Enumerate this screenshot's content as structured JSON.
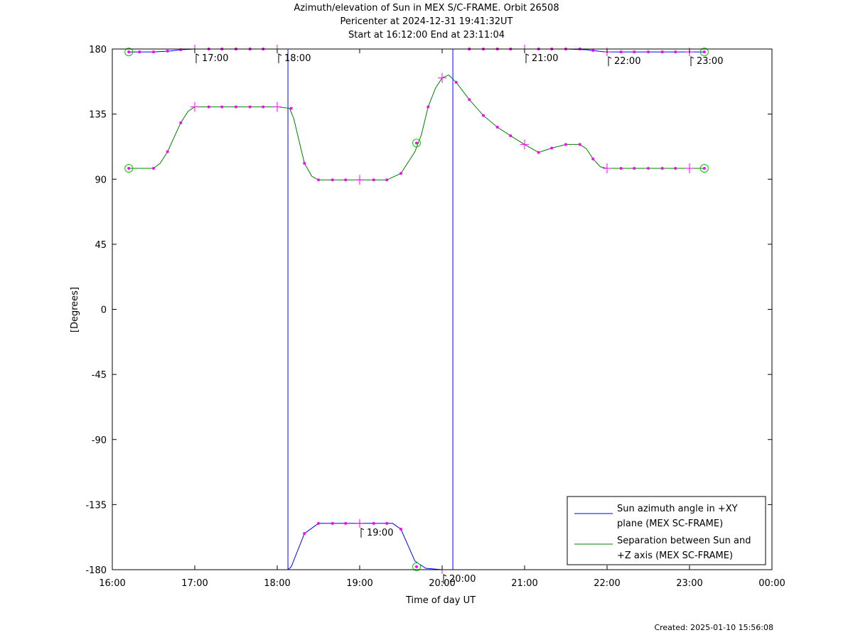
{
  "titles": {
    "line1": "Azimuth/elevation of Sun in MEX S/C-FRAME.  Orbit 26508",
    "line2": "Pericenter at 2024-12-31 19:41:32UT",
    "line3": "Start at 16:12:00 End at 23:11:04"
  },
  "footer": {
    "created": "Created: 2025-01-10 15:56:08"
  },
  "colors": {
    "azimuth": "#0000ff",
    "separation": "#008000",
    "marker": "#ff00ff",
    "frame": "#000000"
  },
  "chart_data": {
    "type": "line",
    "xlabel": "Time of day UT",
    "ylabel": "[Degrees]",
    "xlim": [
      16.0,
      24.0
    ],
    "ylim": [
      -180,
      180
    ],
    "xticks": [
      16,
      17,
      18,
      19,
      20,
      21,
      22,
      23,
      24
    ],
    "xtick_labels": [
      "16:00",
      "17:00",
      "18:00",
      "19:00",
      "20:00",
      "21:00",
      "22:00",
      "23:00",
      "00:00"
    ],
    "yticks": [
      180,
      135,
      90,
      45,
      0,
      -45,
      -90,
      -135,
      -180
    ],
    "ytick_labels": [
      "180",
      "135",
      "90",
      "45",
      "0",
      "-45",
      "-90",
      "-135",
      "-180"
    ],
    "legend_position": "bottom-right",
    "series": [
      {
        "name": "Sun azimuth angle in +XY plane (MEX SC-FRAME)",
        "legend_lines": [
          "Sun azimuth angle in +XY",
          "plane (MEX SC-FRAME)"
        ],
        "color_key": "azimuth",
        "segments": [
          [
            [
              16.2,
              178
            ],
            [
              16.5,
              178
            ],
            [
              16.7,
              178.6
            ],
            [
              16.83,
              179.5
            ],
            [
              17.0,
              180
            ],
            [
              18.0,
              180
            ],
            [
              18.13,
              180
            ]
          ],
          [
            [
              18.13,
              -180
            ],
            [
              18.17,
              -178
            ],
            [
              18.33,
              -155
            ],
            [
              18.5,
              -148
            ],
            [
              19.0,
              -148
            ],
            [
              19.4,
              -148
            ],
            [
              19.5,
              -152
            ],
            [
              19.67,
              -174
            ],
            [
              19.8,
              -179
            ],
            [
              20.0,
              -180
            ],
            [
              20.13,
              -180
            ]
          ],
          [
            [
              20.13,
              180
            ],
            [
              20.3,
              180
            ],
            [
              21.0,
              180
            ],
            [
              21.5,
              180
            ],
            [
              21.75,
              179.5
            ],
            [
              21.9,
              178.5
            ],
            [
              22.0,
              178
            ],
            [
              23.18,
              178
            ]
          ]
        ],
        "hour_labels": [
          {
            "x": 17.0,
            "y": 180,
            "label": "17:00"
          },
          {
            "x": 18.0,
            "y": 180,
            "label": "18:00"
          },
          {
            "x": 19.0,
            "y": -148,
            "label": "19:00"
          },
          {
            "x": 20.0,
            "y": -180,
            "label": "20:00"
          },
          {
            "x": 21.0,
            "y": 180,
            "label": "21:00"
          },
          {
            "x": 22.0,
            "y": 178,
            "label": "22:00"
          },
          {
            "x": 23.0,
            "y": 178,
            "label": "23:00"
          }
        ],
        "dots": [
          [
            16.33,
            178
          ],
          [
            16.5,
            178
          ],
          [
            16.67,
            178.6
          ],
          [
            16.83,
            179.5
          ],
          [
            17.17,
            180
          ],
          [
            17.33,
            180
          ],
          [
            17.5,
            180
          ],
          [
            17.67,
            180
          ],
          [
            17.83,
            180
          ],
          [
            18.33,
            -155
          ],
          [
            18.5,
            -148
          ],
          [
            18.67,
            -148
          ],
          [
            18.83,
            -148
          ],
          [
            19.17,
            -148
          ],
          [
            19.33,
            -148
          ],
          [
            19.5,
            -152
          ],
          [
            20.33,
            180
          ],
          [
            20.5,
            180
          ],
          [
            20.67,
            180
          ],
          [
            20.83,
            180
          ],
          [
            21.17,
            180
          ],
          [
            21.33,
            180
          ],
          [
            21.5,
            180
          ],
          [
            21.67,
            180
          ],
          [
            21.83,
            179
          ],
          [
            22.17,
            178
          ],
          [
            22.33,
            178
          ],
          [
            22.5,
            178
          ],
          [
            22.67,
            178
          ],
          [
            22.83,
            178
          ]
        ],
        "circles": [
          [
            16.2,
            178
          ],
          [
            19.69,
            -178
          ],
          [
            23.18,
            178
          ]
        ]
      },
      {
        "name": "Separation between Sun and +Z axis (MEX SC-FRAME)",
        "legend_lines": [
          "Separation between Sun and",
          "+Z axis (MEX SC-FRAME)"
        ],
        "color_key": "separation",
        "points": [
          [
            16.2,
            97.5
          ],
          [
            16.5,
            97.5
          ],
          [
            16.58,
            101
          ],
          [
            16.67,
            109
          ],
          [
            16.83,
            129
          ],
          [
            16.92,
            137
          ],
          [
            17.0,
            140
          ],
          [
            17.5,
            140
          ],
          [
            18.0,
            140
          ],
          [
            18.15,
            139
          ],
          [
            18.2,
            132
          ],
          [
            18.33,
            101
          ],
          [
            18.42,
            92
          ],
          [
            18.5,
            89.5
          ],
          [
            19.0,
            89.5
          ],
          [
            19.33,
            89.5
          ],
          [
            19.5,
            94
          ],
          [
            19.67,
            109
          ],
          [
            19.75,
            121
          ],
          [
            19.83,
            140
          ],
          [
            19.92,
            153
          ],
          [
            20.0,
            160
          ],
          [
            20.08,
            162
          ],
          [
            20.17,
            157
          ],
          [
            20.33,
            145
          ],
          [
            20.5,
            134
          ],
          [
            20.67,
            126
          ],
          [
            20.83,
            120
          ],
          [
            21.0,
            114
          ],
          [
            21.17,
            108.5
          ],
          [
            21.33,
            111.5
          ],
          [
            21.5,
            114
          ],
          [
            21.67,
            114
          ],
          [
            21.75,
            111
          ],
          [
            21.83,
            104
          ],
          [
            21.92,
            98.5
          ],
          [
            22.0,
            97.5
          ],
          [
            23.18,
            97.5
          ]
        ],
        "hour_ticks": [
          [
            17.0,
            140
          ],
          [
            18.0,
            140
          ],
          [
            19.0,
            89.5
          ],
          [
            20.0,
            160
          ],
          [
            21.0,
            114
          ],
          [
            22.0,
            97.5
          ],
          [
            23.0,
            97.5
          ]
        ],
        "dots": [
          [
            16.5,
            97.5
          ],
          [
            16.67,
            109
          ],
          [
            16.83,
            129
          ],
          [
            17.17,
            140
          ],
          [
            17.33,
            140
          ],
          [
            17.5,
            140
          ],
          [
            17.67,
            140
          ],
          [
            17.83,
            140
          ],
          [
            18.17,
            139
          ],
          [
            18.33,
            101
          ],
          [
            18.5,
            89.5
          ],
          [
            18.67,
            89.5
          ],
          [
            18.83,
            89.5
          ],
          [
            19.17,
            89.5
          ],
          [
            19.33,
            89.5
          ],
          [
            19.5,
            94
          ],
          [
            19.83,
            140
          ],
          [
            20.17,
            157
          ],
          [
            20.33,
            145
          ],
          [
            20.5,
            134
          ],
          [
            20.67,
            126
          ],
          [
            20.83,
            120
          ],
          [
            21.17,
            108.5
          ],
          [
            21.33,
            111.5
          ],
          [
            21.5,
            114
          ],
          [
            21.67,
            114
          ],
          [
            21.83,
            104
          ],
          [
            22.17,
            97.5
          ],
          [
            22.33,
            97.5
          ],
          [
            22.5,
            97.5
          ],
          [
            22.67,
            97.5
          ],
          [
            22.83,
            97.5
          ]
        ],
        "circles": [
          [
            16.2,
            97.5
          ],
          [
            19.69,
            115
          ],
          [
            23.18,
            97.5
          ]
        ]
      }
    ]
  }
}
